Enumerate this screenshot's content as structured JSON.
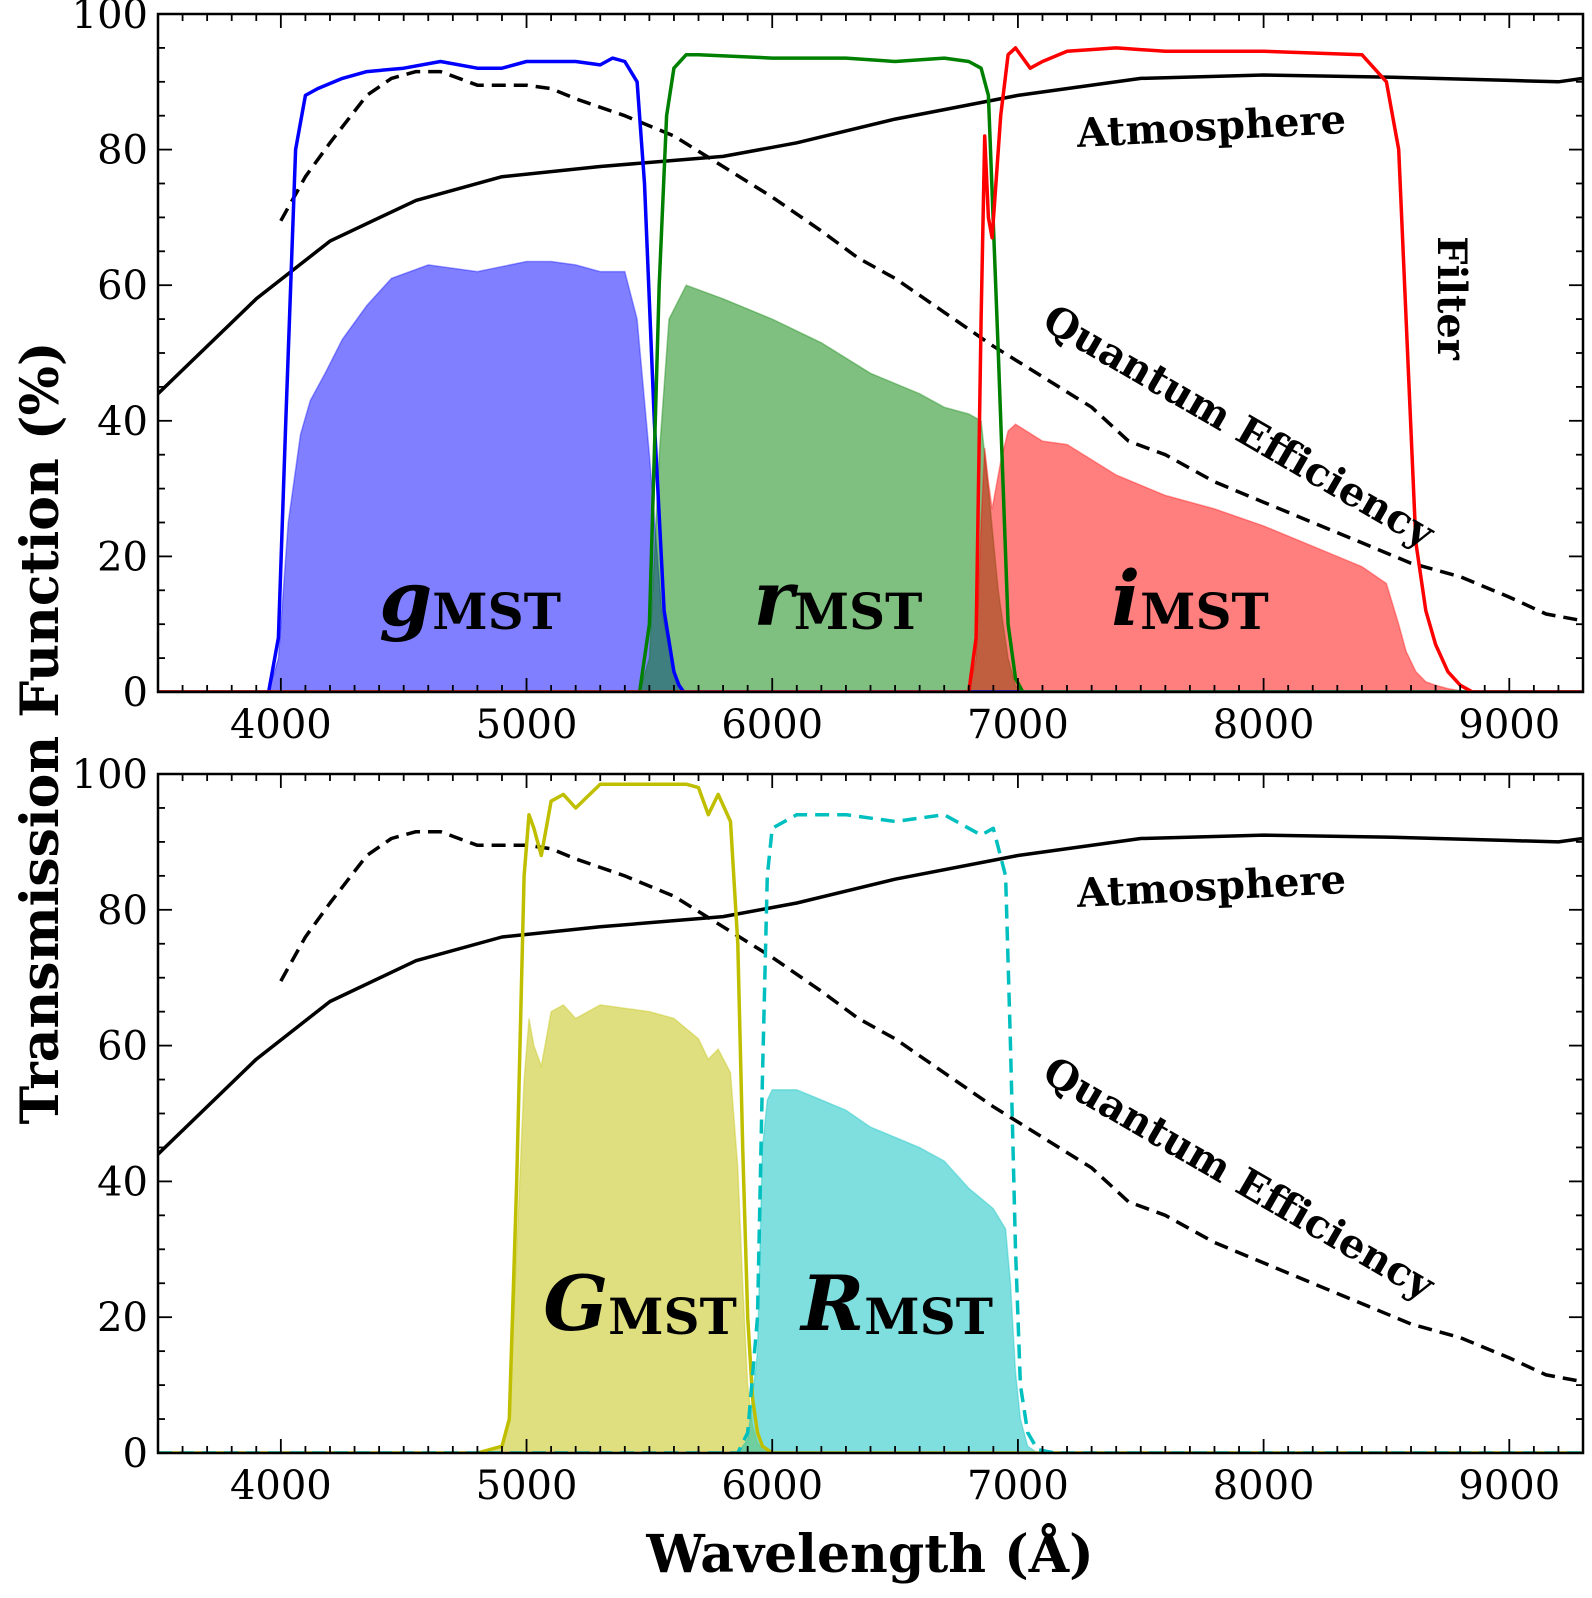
{
  "chart_data": [
    {
      "type": "line",
      "panel": "top",
      "xlim": [
        3500,
        9300
      ],
      "ylim": [
        0,
        100
      ],
      "x_ticks": [
        "4000",
        "5000",
        "6000",
        "7000",
        "8000",
        "9000"
      ],
      "y_ticks": [
        "0",
        "20",
        "40",
        "60",
        "80",
        "100"
      ],
      "annotations": {
        "atmosphere": "Atmosphere",
        "quantum_efficiency": "Quantum Efficiency",
        "filter": "Filter"
      },
      "series": [
        {
          "name": "Atmosphere",
          "style": "solid",
          "color": "#000000",
          "x": [
            3500,
            3900,
            4200,
            4550,
            4900,
            5300,
            5800,
            6100,
            6500,
            7000,
            7500,
            8000,
            8500,
            9000,
            9200,
            9300
          ],
          "y": [
            44,
            58,
            66.5,
            72.5,
            76,
            77.5,
            79,
            81,
            84.5,
            88,
            90.5,
            91,
            90.7,
            90.2,
            90,
            90.5
          ]
        },
        {
          "name": "Quantum Efficiency",
          "style": "dashed",
          "color": "#000000",
          "x": [
            4000,
            4100,
            4200,
            4350,
            4450,
            4550,
            4650,
            4800,
            5000,
            5100,
            5200,
            5400,
            5600,
            5800,
            6000,
            6200,
            6350,
            6500,
            6700,
            6900,
            7100,
            7300,
            7450,
            7600,
            7800,
            8000,
            8200,
            8400,
            8600,
            8800,
            9000,
            9150,
            9300
          ],
          "y": [
            69.5,
            76,
            81,
            88,
            90.5,
            91.5,
            91.5,
            89.5,
            89.5,
            89,
            87.5,
            85,
            82,
            77.5,
            73,
            68,
            64,
            61,
            56,
            51,
            46.5,
            42,
            37,
            35,
            31,
            28,
            25,
            22,
            19,
            17,
            14,
            11.5,
            10.5
          ]
        },
        {
          "name": "g filter",
          "style": "solid",
          "color": "#0000ff",
          "x": [
            3500,
            3950,
            3990,
            4020,
            4060,
            4100,
            4150,
            4250,
            4350,
            4500,
            4650,
            4800,
            4900,
            5000,
            5100,
            5200,
            5300,
            5350,
            5400,
            5450,
            5480,
            5520,
            5560,
            5600,
            5620,
            5640,
            9300
          ],
          "y": [
            0,
            0,
            8,
            40,
            80,
            88,
            89,
            90.5,
            91.5,
            92,
            93,
            92,
            92,
            93,
            93,
            93,
            92.5,
            93.5,
            93,
            90,
            75,
            40,
            12,
            3,
            1,
            0,
            0
          ]
        },
        {
          "name": "r filter",
          "style": "solid",
          "color": "#008000",
          "x": [
            3500,
            5460,
            5500,
            5540,
            5570,
            5600,
            5650,
            5700,
            6000,
            6300,
            6500,
            6700,
            6800,
            6850,
            6880,
            6920,
            6960,
            6990,
            7020,
            9300
          ],
          "y": [
            0,
            0,
            10,
            60,
            85,
            92,
            94,
            94,
            93.5,
            93.5,
            93,
            93.5,
            93,
            92,
            88,
            50,
            10,
            2,
            0,
            0
          ]
        },
        {
          "name": "i filter",
          "style": "solid",
          "color": "#ff0000",
          "x": [
            3500,
            6800,
            6830,
            6850,
            6865,
            6880,
            6895,
            6930,
            6960,
            6990,
            7050,
            7100,
            7200,
            7400,
            7600,
            8000,
            8400,
            8500,
            8550,
            8580,
            8620,
            8660,
            8700,
            8750,
            8800,
            8850,
            9300
          ],
          "y": [
            0,
            0,
            8,
            55,
            82,
            70,
            67,
            85,
            94,
            95,
            92,
            93,
            94.5,
            95,
            94.5,
            94.5,
            94,
            90,
            80,
            55,
            22,
            12,
            7,
            3,
            1,
            0,
            0
          ]
        },
        {
          "name": "g band",
          "style": "fill",
          "color": "#0000ff",
          "label": "g",
          "subscript": "MST",
          "x": [
            3950,
            3990,
            4030,
            4080,
            4120,
            4180,
            4250,
            4350,
            4450,
            4600,
            4800,
            5000,
            5100,
            5200,
            5300,
            5400,
            5450,
            5500,
            5550,
            5600,
            5640
          ],
          "y": [
            0,
            5,
            25,
            38,
            43,
            47,
            52,
            57,
            61,
            63,
            62,
            63.5,
            63.5,
            63,
            62,
            62,
            55,
            35,
            12,
            3,
            0
          ]
        },
        {
          "name": "r band",
          "style": "fill",
          "color": "#008000",
          "label": "r",
          "subscript": "MST",
          "x": [
            5460,
            5500,
            5540,
            5580,
            5650,
            5800,
            6000,
            6200,
            6400,
            6600,
            6700,
            6800,
            6850,
            6880,
            6920,
            6960,
            6990,
            7020
          ],
          "y": [
            0,
            5,
            35,
            55,
            60,
            58,
            55,
            51.5,
            47,
            44,
            42,
            41,
            40,
            30,
            15,
            5,
            1,
            0
          ]
        },
        {
          "name": "i band",
          "style": "fill",
          "color": "#ff0000",
          "label": "i",
          "subscript": "MST",
          "x": [
            6800,
            6830,
            6850,
            6865,
            6880,
            6895,
            6930,
            6960,
            6990,
            7100,
            7200,
            7400,
            7600,
            7800,
            8000,
            8200,
            8400,
            8500,
            8550,
            8580,
            8620,
            8660,
            8700,
            8750,
            8800,
            8850
          ],
          "y": [
            0,
            5,
            25,
            36,
            31,
            27,
            34,
            38.5,
            39.5,
            37,
            36.5,
            32,
            29,
            27,
            24.5,
            21.5,
            18.5,
            16,
            10,
            6,
            3,
            1.5,
            1,
            0.5,
            0.2,
            0
          ]
        }
      ]
    },
    {
      "type": "line",
      "panel": "bottom",
      "xlim": [
        3500,
        9300
      ],
      "ylim": [
        0,
        100
      ],
      "x_ticks": [
        "4000",
        "5000",
        "6000",
        "7000",
        "8000",
        "9000"
      ],
      "y_ticks": [
        "0",
        "20",
        "40",
        "60",
        "80",
        "100"
      ],
      "annotations": {
        "atmosphere": "Atmosphere",
        "quantum_efficiency": "Quantum Efficiency"
      },
      "series": [
        {
          "name": "Atmosphere",
          "style": "solid",
          "color": "#000000",
          "x": [
            3500,
            3900,
            4200,
            4550,
            4900,
            5300,
            5800,
            6100,
            6500,
            7000,
            7500,
            8000,
            8500,
            9000,
            9200,
            9300
          ],
          "y": [
            44,
            58,
            66.5,
            72.5,
            76,
            77.5,
            79,
            81,
            84.5,
            88,
            90.5,
            91,
            90.7,
            90.2,
            90,
            90.5
          ]
        },
        {
          "name": "Quantum Efficiency",
          "style": "dashed",
          "color": "#000000",
          "x": [
            4000,
            4100,
            4200,
            4350,
            4450,
            4550,
            4650,
            4800,
            5000,
            5100,
            5200,
            5400,
            5600,
            5800,
            6000,
            6200,
            6350,
            6500,
            6700,
            6900,
            7100,
            7300,
            7450,
            7600,
            7800,
            8000,
            8200,
            8400,
            8600,
            8800,
            9000,
            9150,
            9300
          ],
          "y": [
            69.5,
            76,
            81,
            88,
            90.5,
            91.5,
            91.5,
            89.5,
            89.5,
            89,
            87.5,
            85,
            82,
            77.5,
            73,
            68,
            64,
            61,
            56,
            51,
            46.5,
            42,
            37,
            35,
            31,
            28,
            25,
            22,
            19,
            17,
            14,
            11.5,
            10.5
          ]
        },
        {
          "name": "G filter",
          "style": "solid",
          "color": "#bfbf00",
          "x": [
            3500,
            4800,
            4900,
            4930,
            4960,
            4990,
            5010,
            5030,
            5060,
            5100,
            5150,
            5200,
            5300,
            5400,
            5500,
            5600,
            5650,
            5700,
            5740,
            5780,
            5830,
            5860,
            5880,
            5900,
            5920,
            5940,
            5960,
            6000,
            9300
          ],
          "y": [
            0,
            0,
            1,
            5,
            40,
            85,
            94,
            92,
            88,
            96,
            97,
            95,
            98.5,
            98.5,
            98.5,
            98.5,
            98.5,
            98,
            94,
            97,
            93,
            75,
            45,
            20,
            8,
            3,
            1,
            0,
            0
          ]
        },
        {
          "name": "R filter",
          "style": "dashed",
          "color": "#00bfbf",
          "x": [
            3500,
            5860,
            5900,
            5940,
            5960,
            5980,
            6000,
            6100,
            6300,
            6500,
            6700,
            6800,
            6850,
            6900,
            6950,
            6970,
            6990,
            7010,
            7040,
            7080,
            7150,
            9300
          ],
          "y": [
            0,
            0,
            3,
            20,
            55,
            85,
            92,
            94,
            94,
            93,
            94,
            92,
            91,
            92,
            85,
            60,
            30,
            10,
            3,
            0.5,
            0,
            0
          ]
        },
        {
          "name": "G band",
          "style": "fill",
          "color": "#bfbf00",
          "label": "G",
          "subscript": "MST",
          "x": [
            4800,
            4900,
            4930,
            4960,
            4990,
            5010,
            5030,
            5060,
            5100,
            5150,
            5200,
            5300,
            5400,
            5500,
            5600,
            5700,
            5740,
            5780,
            5830,
            5860,
            5880,
            5900,
            5920,
            5940,
            5960,
            6000
          ],
          "y": [
            0,
            1,
            5,
            30,
            55,
            64,
            60,
            57,
            65,
            66,
            64,
            66,
            65.5,
            65,
            64,
            61,
            58,
            59.5,
            56,
            42,
            25,
            10,
            4,
            1.5,
            0.5,
            0
          ]
        },
        {
          "name": "R band",
          "style": "fill",
          "color": "#00bfbf",
          "label": "R",
          "subscript": "MST",
          "x": [
            5860,
            5900,
            5940,
            5960,
            5980,
            6000,
            6100,
            6200,
            6300,
            6400,
            6500,
            6600,
            6700,
            6800,
            6850,
            6900,
            6950,
            6970,
            6990,
            7010,
            7040,
            7080
          ],
          "y": [
            0,
            2,
            15,
            45,
            52,
            53.5,
            53.5,
            52,
            50.5,
            48,
            46.5,
            45,
            43,
            39,
            37.5,
            36,
            33,
            25,
            12,
            5,
            1,
            0
          ]
        }
      ]
    }
  ],
  "shared_labels": {
    "ylabel": "Transmission Function (%)",
    "xlabel": "Wavelength (Å)"
  }
}
